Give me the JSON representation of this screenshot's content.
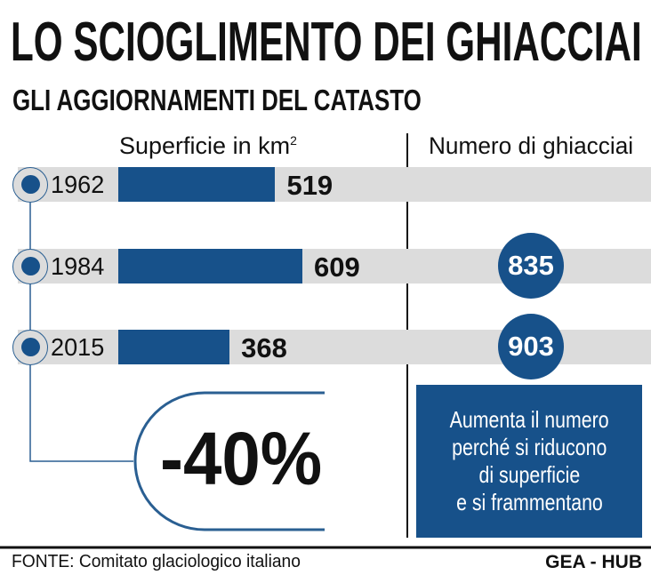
{
  "title": "LO SCIOGLIMENTO DEI GHIACCIAI",
  "subtitle": "GLI AGGIORNAMENTI DEL CATASTO",
  "chart_data": {
    "type": "bar",
    "title": "LO SCIOGLIMENTO DEI GHIACCIAI",
    "subtitle": "GLI AGGIORNAMENTI DEL CATASTO",
    "categories": [
      "1962",
      "1984",
      "2015"
    ],
    "series": [
      {
        "name": "Superficie in km²",
        "values": [
          519,
          609,
          368
        ]
      },
      {
        "name": "Numero di ghiacciai",
        "values": [
          null,
          835,
          903
        ]
      }
    ],
    "value_labels": [
      "519",
      "609",
      "368"
    ],
    "count_labels": [
      "",
      "835",
      "903"
    ],
    "annotation": "-40%"
  },
  "headers": {
    "area": "Superficie in km",
    "area_sup": "2",
    "count": "Numero di ghiacciai"
  },
  "note": [
    "Aumenta il numero",
    "perché si riducono",
    "di superficie",
    "e si frammentano"
  ],
  "footer": {
    "source": "FONTE: Comitato glaciologico italiano",
    "brand": "GEA - HUB"
  },
  "colors": {
    "blue": "#17518a",
    "band": "#dcdcdc"
  }
}
